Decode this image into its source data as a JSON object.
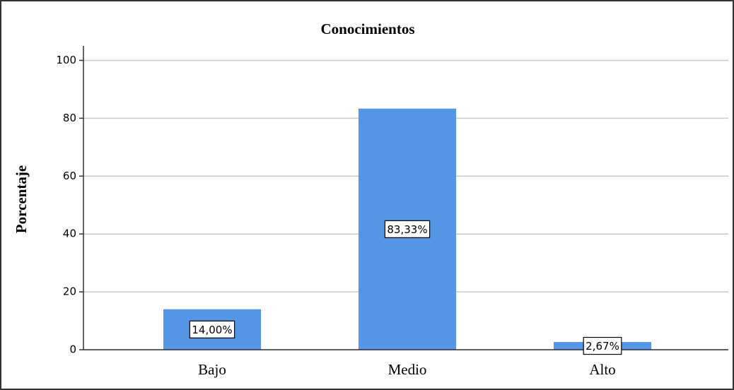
{
  "chart_data": {
    "type": "bar",
    "title": "Conocimientos",
    "y_label": "Porcentaje",
    "categories": [
      "Bajo",
      "Medio",
      "Alto"
    ],
    "values": [
      14.0,
      83.33,
      2.67
    ],
    "value_labels": [
      "14,00%",
      "83,33%",
      "2,67%"
    ],
    "color": "#5596e6",
    "ylim": [
      0,
      105
    ],
    "yticks": [
      0,
      20,
      40,
      60,
      80,
      100
    ],
    "grid": true
  }
}
